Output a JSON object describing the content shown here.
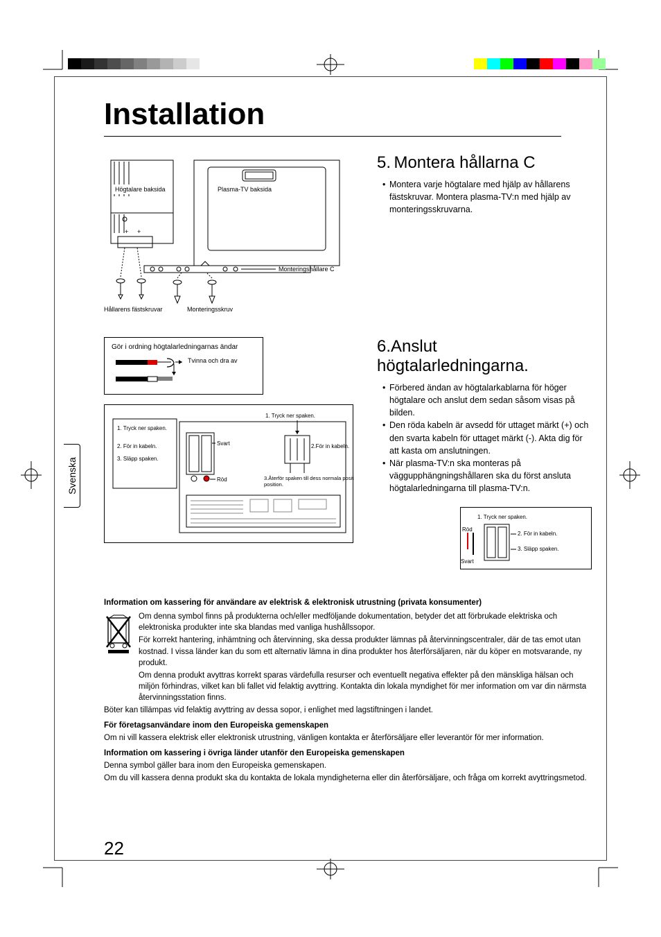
{
  "colors": {
    "grayscale": [
      "#000000",
      "#1a1a1a",
      "#333333",
      "#4d4d4d",
      "#666666",
      "#808080",
      "#999999",
      "#b3b3b3",
      "#cccccc",
      "#e6e6e6"
    ],
    "colorbar": [
      "#ffff00",
      "#00ffff",
      "#00ff00",
      "#0000ff",
      "#000000",
      "#ff0000",
      "#ff00ff",
      "#000000",
      "#ff99cc",
      "#99ff99"
    ]
  },
  "title": "Installation",
  "sidetab": "Svenska",
  "pagenum": "22",
  "fig1": {
    "speaker_back": "Högtalare baksida",
    "tv_back": "Plasma-TV baksida",
    "bracket_c": "Monteringshållare C",
    "bracket_screws": "Hållarens fästskruvar",
    "mounting_screw": "Monteringsskruv"
  },
  "section5": {
    "num": "5.",
    "title": "Montera hållarna C",
    "bullet": "Montera varje högtalare med hjälp av hållarens fästskruvar. Montera plasma-TV:n med hjälp av monteringsskruvarna."
  },
  "fig2": {
    "prepare": "Gör i ordning högtalarledningarnas ändar",
    "twist": "Tvinna och dra av"
  },
  "fig3": {
    "push1": "1. Tryck ner spaken.",
    "insert2": "2. För in kabeln.",
    "release3": "3. Släpp spaken.",
    "push1b": "1. Tryck ner spaken.",
    "insert2b": "2.För in kabeln.",
    "return3": "3.Återför spaken till dess normala position.",
    "black": "Svart",
    "red": "Röd"
  },
  "section6": {
    "num": "6.",
    "title": "Anslut högtalarledningarna.",
    "b1": "Förbered ändan av högtalarkablarna för höger högtalare och anslut dem sedan såsom visas på bilden.",
    "b2": "Den röda kabeln är avsedd för uttaget märkt (+) och den svarta kabeln för uttaget märkt (-). Akta dig för att kasta om anslutningen.",
    "b3": "När plasma-TV:n ska monteras på väggupphängningshållaren ska du först ansluta högtalarledningarna till plasma-TV:n."
  },
  "fig4": {
    "push1": "1. Tryck ner spaken.",
    "insert2": "2. För in kabeln.",
    "release3": "3. Släpp spaken.",
    "red": "Röd",
    "black": "Svart"
  },
  "disposal": {
    "h1": "Information om kassering för användare av elektrisk & elektronisk utrustning (privata konsumenter)",
    "p1": "Om denna symbol finns på produkterna och/eller medföljande dokumentation, betyder det att förbrukade elektriska och elektroniska produkter inte ska blandas med vanliga hushållssopor.",
    "p2": "För korrekt hantering, inhämtning och återvinning, ska dessa produkter lämnas på återvinningscentraler, där de tas emot utan kostnad. I vissa länder kan du som ett alternativ lämna in dina produkter hos återförsäljaren, när du köper en motsvarande, ny produkt.",
    "p3": "Om denna produkt avyttras korrekt sparas värdefulla resurser och eventuellt negativa effekter på den mänskliga hälsan och miljön förhindras, vilket kan bli fallet vid felaktig avyttring. Kontakta din lokala myndighet för mer information om var din närmsta återvinningsstation finns.",
    "p4": "Böter kan tillämpas vid felaktig avyttring av dessa sopor, i enlighet med lagstiftningen i landet.",
    "h2": "För företagsanvändare inom den Europeiska gemenskapen",
    "p5": "Om ni vill kassera elektrisk eller elektronisk utrustning, vänligen kontakta er återförsäljare eller leverantör för mer information.",
    "h3": "Information om kassering i övriga länder utanför den Europeiska gemenskapen",
    "p6": "Denna symbol gäller bara inom den Europeiska gemenskapen.",
    "p7": "Om du vill kassera denna produkt ska du kontakta de lokala myndigheterna eller din återförsäljare, och fråga om korrekt avyttringsmetod."
  }
}
